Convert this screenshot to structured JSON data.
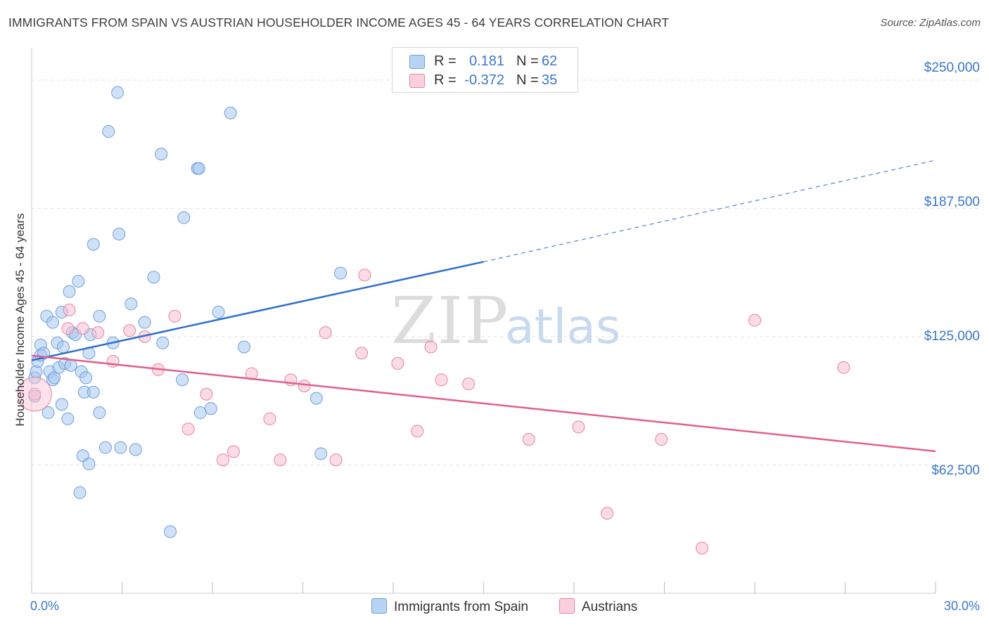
{
  "chart_data": {
    "type": "scatter",
    "title": "IMMIGRANTS FROM SPAIN VS AUSTRIAN HOUSEHOLDER INCOME AGES 45 - 64 YEARS CORRELATION CHART",
    "source": "Source: ZipAtlas.com",
    "ylabel": "Householder Income Ages 45 - 64 years",
    "xlim": [
      0,
      30
    ],
    "ylim": [
      0,
      262000
    ],
    "x_tick_labels": [
      "0.0%",
      "30.0%"
    ],
    "y_ticks": [
      62500,
      125000,
      187500,
      250000
    ],
    "y_tick_labels": [
      "$62,500",
      "$125,000",
      "$187,500",
      "$250,000"
    ],
    "grid": true,
    "legend_position": "top-center",
    "watermark": {
      "zip": "ZIP",
      "atlas": "atlas"
    },
    "stats": [
      {
        "r_label": "R =",
        "r": "0.181",
        "n_label": "N =",
        "n": "62"
      },
      {
        "r_label": "R =",
        "r": "-0.372",
        "n_label": "N =",
        "n": "35"
      }
    ],
    "series": [
      {
        "name": "Immigrants from Spain",
        "color": "#a8c8f0",
        "stroke": "#6e9fdb",
        "line_color": "#2f6fcc",
        "trend": {
          "x": [
            0,
            15
          ],
          "y": [
            113500,
            161500
          ],
          "dashed_to": [
            30,
            211000
          ]
        },
        "points": [
          [
            0.1,
            96000
          ],
          [
            0.1,
            105000
          ],
          [
            0.15,
            108000
          ],
          [
            0.2,
            113000
          ],
          [
            0.3,
            121000
          ],
          [
            0.3,
            116000
          ],
          [
            0.4,
            117000
          ],
          [
            0.5,
            135000
          ],
          [
            0.55,
            88000
          ],
          [
            0.6,
            108000
          ],
          [
            0.7,
            104000
          ],
          [
            0.7,
            132000
          ],
          [
            0.75,
            105000
          ],
          [
            0.85,
            122000
          ],
          [
            0.9,
            110000
          ],
          [
            1.0,
            92000
          ],
          [
            1.0,
            137000
          ],
          [
            1.05,
            120000
          ],
          [
            1.1,
            112000
          ],
          [
            1.2,
            85000
          ],
          [
            1.25,
            147000
          ],
          [
            1.3,
            111000
          ],
          [
            1.35,
            127000
          ],
          [
            1.45,
            126000
          ],
          [
            1.55,
            152000
          ],
          [
            1.6,
            49000
          ],
          [
            1.65,
            108000
          ],
          [
            1.7,
            67000
          ],
          [
            1.75,
            98000
          ],
          [
            1.8,
            105000
          ],
          [
            1.9,
            63000
          ],
          [
            1.9,
            117000
          ],
          [
            1.95,
            126000
          ],
          [
            2.05,
            98000
          ],
          [
            2.05,
            170000
          ],
          [
            2.25,
            88000
          ],
          [
            2.25,
            135000
          ],
          [
            2.45,
            71000
          ],
          [
            2.55,
            225000
          ],
          [
            2.7,
            122000
          ],
          [
            2.85,
            244000
          ],
          [
            2.9,
            175000
          ],
          [
            2.95,
            71000
          ],
          [
            3.3,
            141000
          ],
          [
            3.45,
            70000
          ],
          [
            3.75,
            132000
          ],
          [
            4.05,
            154000
          ],
          [
            4.3,
            214000
          ],
          [
            4.35,
            122000
          ],
          [
            4.6,
            30000
          ],
          [
            5.0,
            104000
          ],
          [
            5.05,
            183000
          ],
          [
            5.5,
            207000
          ],
          [
            5.55,
            207000
          ],
          [
            5.6,
            88000
          ],
          [
            5.95,
            90000
          ],
          [
            6.2,
            137000
          ],
          [
            6.6,
            234000
          ],
          [
            7.05,
            120000
          ],
          [
            9.45,
            95000
          ],
          [
            9.6,
            68000
          ],
          [
            10.25,
            156000
          ]
        ]
      },
      {
        "name": "Austrians",
        "color": "#f8c0d2",
        "stroke": "#e8829f",
        "line_color": "#e0608a",
        "trend": {
          "x": [
            0,
            30
          ],
          "y": [
            115800,
            69200
          ]
        },
        "points": [
          [
            0.1,
            97000
          ],
          [
            1.2,
            129000
          ],
          [
            1.25,
            138000
          ],
          [
            1.7,
            129000
          ],
          [
            2.2,
            127000
          ],
          [
            2.7,
            113000
          ],
          [
            3.25,
            128000
          ],
          [
            3.75,
            125000
          ],
          [
            4.2,
            109000
          ],
          [
            4.75,
            135000
          ],
          [
            5.2,
            80000
          ],
          [
            5.8,
            97000
          ],
          [
            6.35,
            65000
          ],
          [
            6.7,
            69000
          ],
          [
            7.3,
            107000
          ],
          [
            7.9,
            85000
          ],
          [
            8.25,
            65000
          ],
          [
            8.6,
            104000
          ],
          [
            9.05,
            101000
          ],
          [
            9.75,
            127000
          ],
          [
            10.1,
            65000
          ],
          [
            10.95,
            117000
          ],
          [
            11.05,
            155000
          ],
          [
            12.15,
            112000
          ],
          [
            12.8,
            79000
          ],
          [
            13.25,
            120000
          ],
          [
            13.6,
            104000
          ],
          [
            14.5,
            102000
          ],
          [
            16.5,
            75000
          ],
          [
            18.15,
            81000
          ],
          [
            19.1,
            39000
          ],
          [
            20.9,
            75000
          ],
          [
            22.25,
            22000
          ],
          [
            24.0,
            133000
          ],
          [
            26.95,
            110000
          ]
        ]
      }
    ]
  }
}
